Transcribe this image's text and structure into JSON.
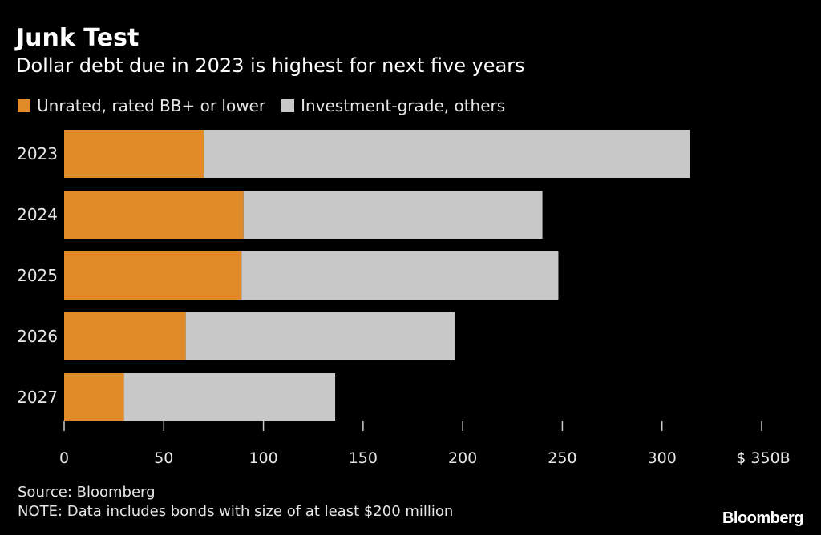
{
  "chart_data": {
    "type": "bar",
    "orientation": "horizontal",
    "stacked": true,
    "title": "Junk Test",
    "subtitle": "Dollar debt due in 2023 is highest for next five years",
    "categories": [
      "2023",
      "2024",
      "2025",
      "2026",
      "2027"
    ],
    "series": [
      {
        "name": "Unrated, rated BB+ or lower",
        "color": "#e08b28",
        "values": [
          70,
          90,
          89,
          61,
          30
        ]
      },
      {
        "name": "Investment-grade, others",
        "color": "#c8c8c8",
        "values": [
          244,
          150,
          159,
          135,
          106
        ]
      }
    ],
    "xlim": [
      0,
      350
    ],
    "xticks": [
      0,
      50,
      100,
      150,
      200,
      250,
      300,
      350
    ],
    "xtick_labels": [
      "0",
      "50",
      "100",
      "150",
      "200",
      "250",
      "300",
      "$ 350B"
    ],
    "xlabel": "",
    "ylabel": "",
    "legend_position": "top-left",
    "grid": false
  },
  "footer": {
    "source": "Source: Bloomberg",
    "note": "NOTE: Data includes bonds with size of at least $200 million",
    "logo_text": "Bloomberg"
  },
  "colors": {
    "background": "#000000",
    "text": "#e6e6e6",
    "axis": "#cccccc"
  }
}
